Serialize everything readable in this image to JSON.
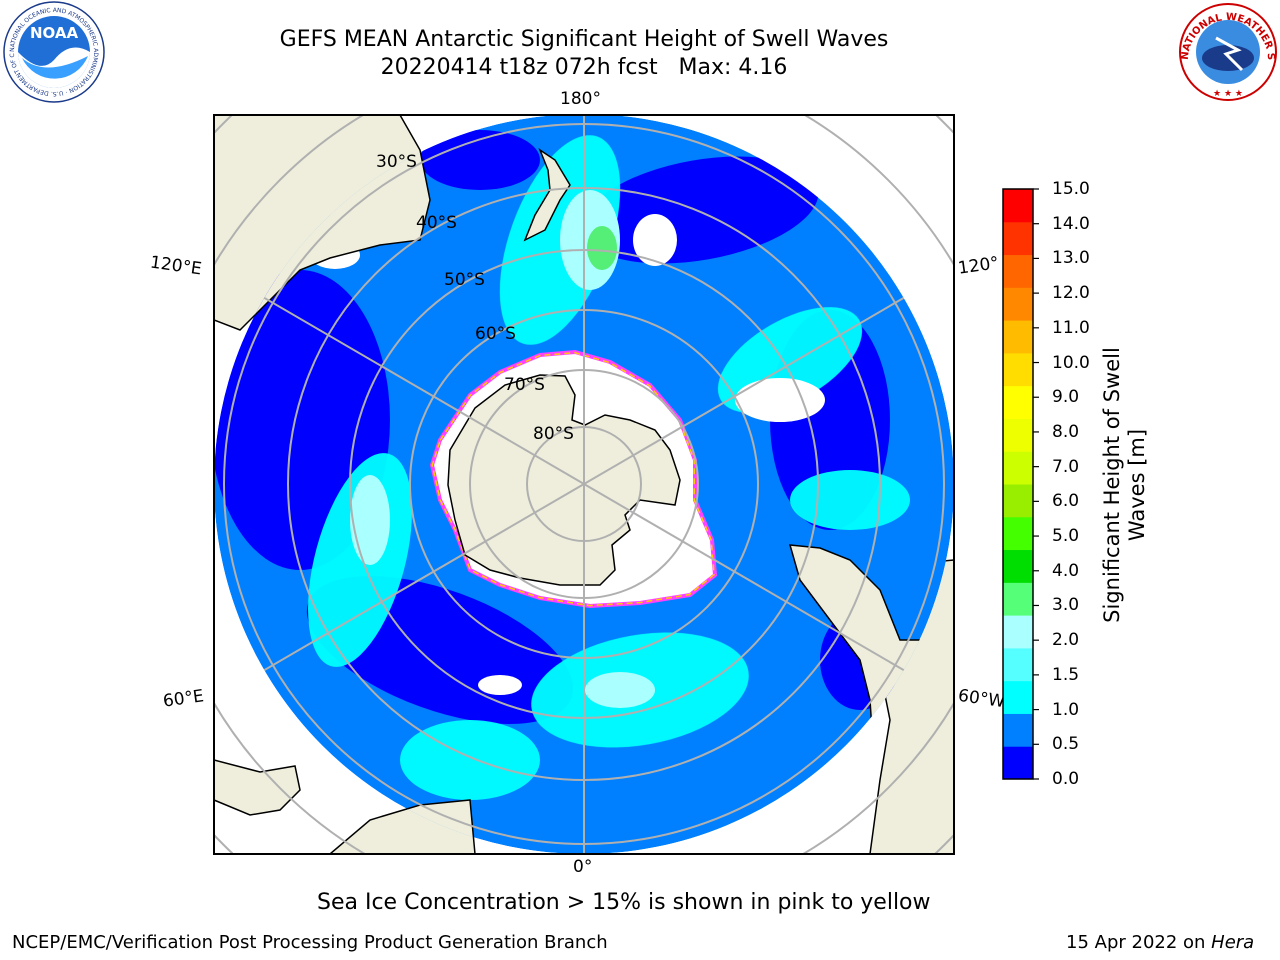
{
  "title": {
    "line1": "GEFS MEAN Antarctic Significant Height of Swell Waves",
    "line2": "20220414 t18z 072h fcst   Max: 4.16"
  },
  "map": {
    "projection": "south-polar-stereographic",
    "longitude_labels": {
      "top": "180°",
      "bottom": "0°",
      "upper_left": "120°E",
      "lower_left": "60°E",
      "upper_right": "120°",
      "lower_right": "60°W"
    },
    "latitude_labels": [
      "30°S",
      "40°S",
      "50°S",
      "60°S",
      "70°S",
      "80°S"
    ],
    "colors": {
      "land": "#efeedc",
      "ice_edge": "#ff40ff",
      "ocean_low": "#0000ff",
      "ocean_mid": "#0080ff"
    }
  },
  "colorbar": {
    "label_line1": "Significant Height of Swell",
    "label_line2": "Waves [m]",
    "ticks": [
      "15.0",
      "14.0",
      "13.0",
      "12.0",
      "11.0",
      "10.0",
      "9.0",
      "8.0",
      "7.0",
      "6.0",
      "5.0",
      "4.0",
      "3.0",
      "2.0",
      "1.5",
      "1.0",
      "0.5",
      "0.0"
    ],
    "colors": [
      "#0000ff",
      "#0080ff",
      "#00ffff",
      "#55ffff",
      "#aaffff",
      "#55ff77",
      "#00dd00",
      "#44ff00",
      "#99ee00",
      "#ccff00",
      "#eeff00",
      "#ffff00",
      "#ffdd00",
      "#ffbb00",
      "#ff8800",
      "#ff6600",
      "#ff3300",
      "#ff0000"
    ]
  },
  "note": "Sea Ice Concentration > 15% is shown in pink to yellow",
  "footer": {
    "left": "NCEP/EMC/Verification Post Processing Product Generation Branch",
    "right_date": "15 Apr 2022 on ",
    "right_machine": "Hera"
  },
  "logos": {
    "noaa_text": "NOAA",
    "noaa_ring": "NATIONAL OCEANIC AND ATMOSPHERIC ADMINISTRATION · U.S. DEPARTMENT OF COMMERCE",
    "nws_ring": "NATIONAL WEATHER SERVICE"
  }
}
